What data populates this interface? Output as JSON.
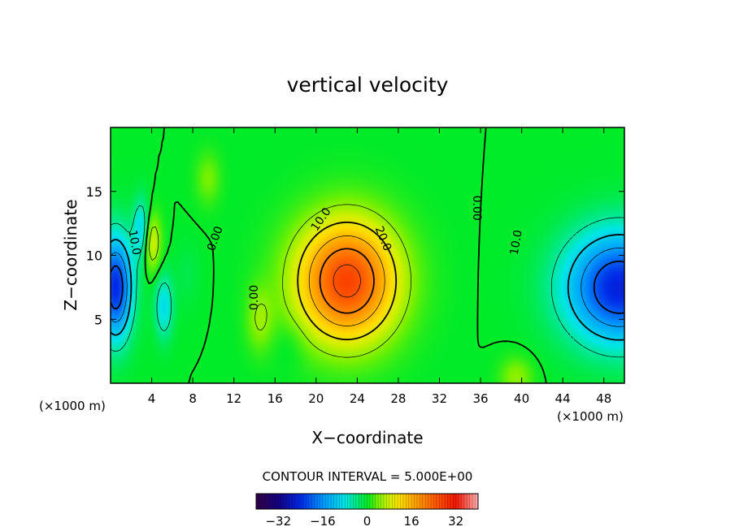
{
  "chart_data": {
    "type": "heatmap",
    "title": "vertical velocity",
    "xlabel": "X−coordinate",
    "ylabel": "Z−coordinate",
    "x_unit_left": "(×1000 m)",
    "x_unit_right": "(×1000 m)",
    "xlim": [
      0,
      50
    ],
    "ylim": [
      0,
      20
    ],
    "xticks": [
      4,
      8,
      12,
      16,
      20,
      24,
      28,
      32,
      36,
      40,
      44,
      48
    ],
    "xtick_labels": [
      "4",
      "8",
      "12",
      "16",
      "20",
      "24",
      "28",
      "32",
      "36",
      "40",
      "44",
      "48"
    ],
    "yticks": [
      5,
      10,
      15
    ],
    "ytick_labels": [
      "5",
      "10",
      "15"
    ],
    "contour_interval_text": "CONTOUR INTERVAL = 5.000E+00",
    "contour_interval": 5,
    "colorbar": {
      "range": [
        -40,
        40
      ],
      "ticks": [
        -32,
        -16,
        0,
        16,
        32
      ],
      "tick_labels": [
        "−32",
        "−16",
        "0",
        "16",
        "32"
      ]
    },
    "features": [
      {
        "type": "updraft",
        "x": 23,
        "z": 7.5,
        "peak": 27
      },
      {
        "type": "downdraft",
        "x": 49,
        "z": 7.5,
        "peak": -25
      },
      {
        "type": "downdraft",
        "x": 0.5,
        "z": 7.5,
        "peak": -24
      },
      {
        "type": "updraft",
        "x": 4,
        "z": 11,
        "peak": 9
      },
      {
        "type": "downdraft",
        "x": 3,
        "z": 12,
        "peak": -10
      }
    ],
    "contour_labels": [
      {
        "text": "10.0",
        "x": 20.5,
        "z": 12.8,
        "angle": -55
      },
      {
        "text": "20.0",
        "x": 26.5,
        "z": 11.3,
        "angle": 68
      },
      {
        "text": "0.00",
        "x": 35.6,
        "z": 13.7,
        "angle": 90
      },
      {
        "text": "10.0",
        "x": 39.5,
        "z": 11.0,
        "angle": -80
      },
      {
        "text": "0.00",
        "x": 10.2,
        "z": 11.3,
        "angle": -70
      },
      {
        "text": "0.00",
        "x": 14.0,
        "z": 6.7,
        "angle": -90
      },
      {
        "text": "10.0",
        "x": 2.3,
        "z": 11.0,
        "angle": 80
      }
    ]
  }
}
